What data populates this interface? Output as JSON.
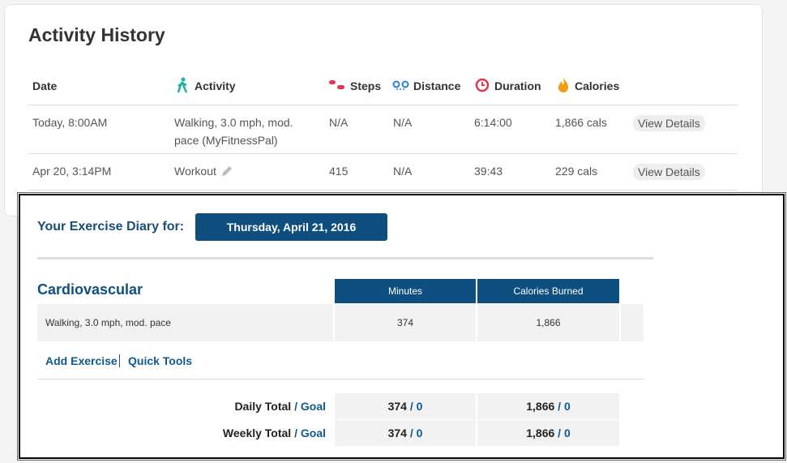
{
  "activity_history": {
    "title": "Activity History",
    "columns": [
      "Date",
      "Activity",
      "Steps",
      "Distance",
      "Duration",
      "Calories"
    ],
    "rows": [
      [
        "Today, 8:00AM",
        "Walking, 3.0 mph, mod. pace (MyFitnessPal)",
        "N/A",
        "N/A",
        "6:14:00",
        "1,866 cals",
        "View Details"
      ],
      [
        "Apr 20, 3:14PM",
        "Workout",
        "415",
        "N/A",
        "39:43",
        "229 cals",
        "View Details"
      ]
    ]
  },
  "exercise_diary": {
    "label": "Your Exercise Diary for:",
    "date": "Thursday, April 21, 2016",
    "section": "Cardiovascular",
    "columns": [
      "Minutes",
      "Calories Burned"
    ],
    "rows": [
      [
        "Walking, 3.0 mph, mod. pace",
        "374",
        "1,866"
      ]
    ],
    "links": [
      "Add Exercise",
      "Quick Tools"
    ],
    "separator": "/",
    "totals": [
      {
        "label": "Daily Total",
        "goal_label": "Goal",
        "values": [
          [
            "374",
            "0"
          ],
          [
            "1,866",
            "0"
          ]
        ]
      },
      {
        "label": "Weekly Total",
        "goal_label": "Goal",
        "values": [
          [
            "374",
            "0"
          ],
          [
            "1,866",
            "0"
          ]
        ]
      }
    ]
  }
}
